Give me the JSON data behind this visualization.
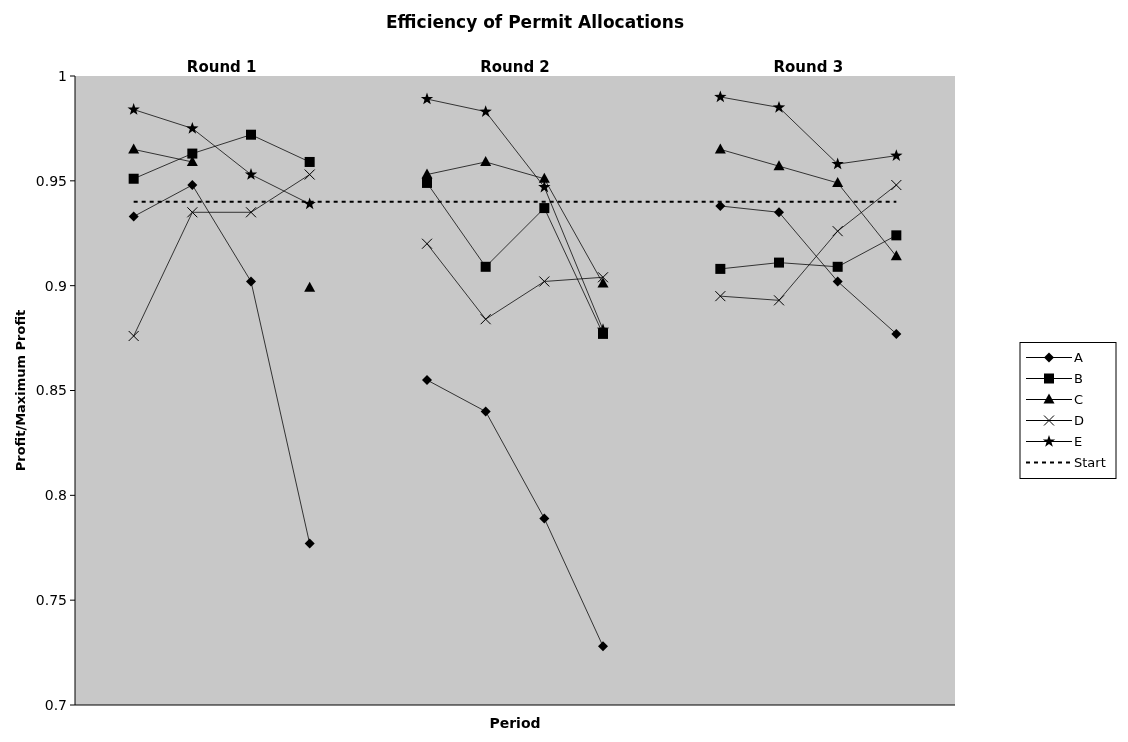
{
  "chart_data": {
    "type": "line",
    "title": "Efficiency of Permit Allocations",
    "xlabel": "Period",
    "ylabel": "Profit/Maximum  Profit",
    "annotations": [
      "Round  1",
      "Round  2",
      "Round  3"
    ],
    "categories": [
      null,
      null,
      null,
      null,
      null,
      null,
      null,
      null,
      null,
      null,
      null,
      null,
      null,
      null
    ],
    "ylim": [
      0.7,
      1
    ],
    "yticks": [
      0.7,
      0.75,
      0.8,
      0.85,
      0.9,
      0.95,
      1
    ],
    "grid": false,
    "legend": "right",
    "series": [
      {
        "name": "A",
        "color": "#000000",
        "marker": "diamond",
        "line_style": "solid",
        "values": [
          0.933,
          0.948,
          0.902,
          0.777,
          null,
          0.855,
          0.84,
          0.789,
          0.728,
          null,
          0.938,
          0.935,
          0.902,
          0.877
        ]
      },
      {
        "name": "B",
        "color": "#000000",
        "marker": "square",
        "line_style": "solid",
        "values": [
          0.951,
          0.963,
          0.972,
          0.959,
          null,
          0.949,
          0.909,
          0.937,
          0.877,
          null,
          0.908,
          0.911,
          0.909,
          0.924
        ]
      },
      {
        "name": "C",
        "color": "#000000",
        "marker": "triangle",
        "line_style": "solid",
        "values": [
          0.965,
          0.959,
          null,
          0.899,
          null,
          0.953,
          0.959,
          0.951,
          0.901,
          null,
          0.965,
          0.957,
          0.949,
          0.914
        ]
      },
      {
        "name": "D",
        "color": "#000000",
        "marker": "cross",
        "line_style": "solid",
        "values": [
          0.876,
          0.935,
          0.935,
          0.953,
          null,
          0.92,
          0.884,
          0.902,
          0.904,
          null,
          0.895,
          0.893,
          0.926,
          0.948
        ]
      },
      {
        "name": "E",
        "color": "#000000",
        "marker": "star",
        "line_style": "solid",
        "values": [
          0.984,
          0.975,
          0.953,
          0.939,
          null,
          0.989,
          0.983,
          0.947,
          0.879,
          null,
          0.99,
          0.985,
          0.958,
          0.962
        ]
      },
      {
        "name": "Start",
        "color": "#000000",
        "marker": "none",
        "line_style": "dashed",
        "values": [
          0.94,
          0.94,
          0.94,
          0.94,
          0.94,
          0.94,
          0.94,
          0.94,
          0.94,
          0.94,
          0.94,
          0.94,
          0.94,
          0.94
        ]
      }
    ]
  }
}
